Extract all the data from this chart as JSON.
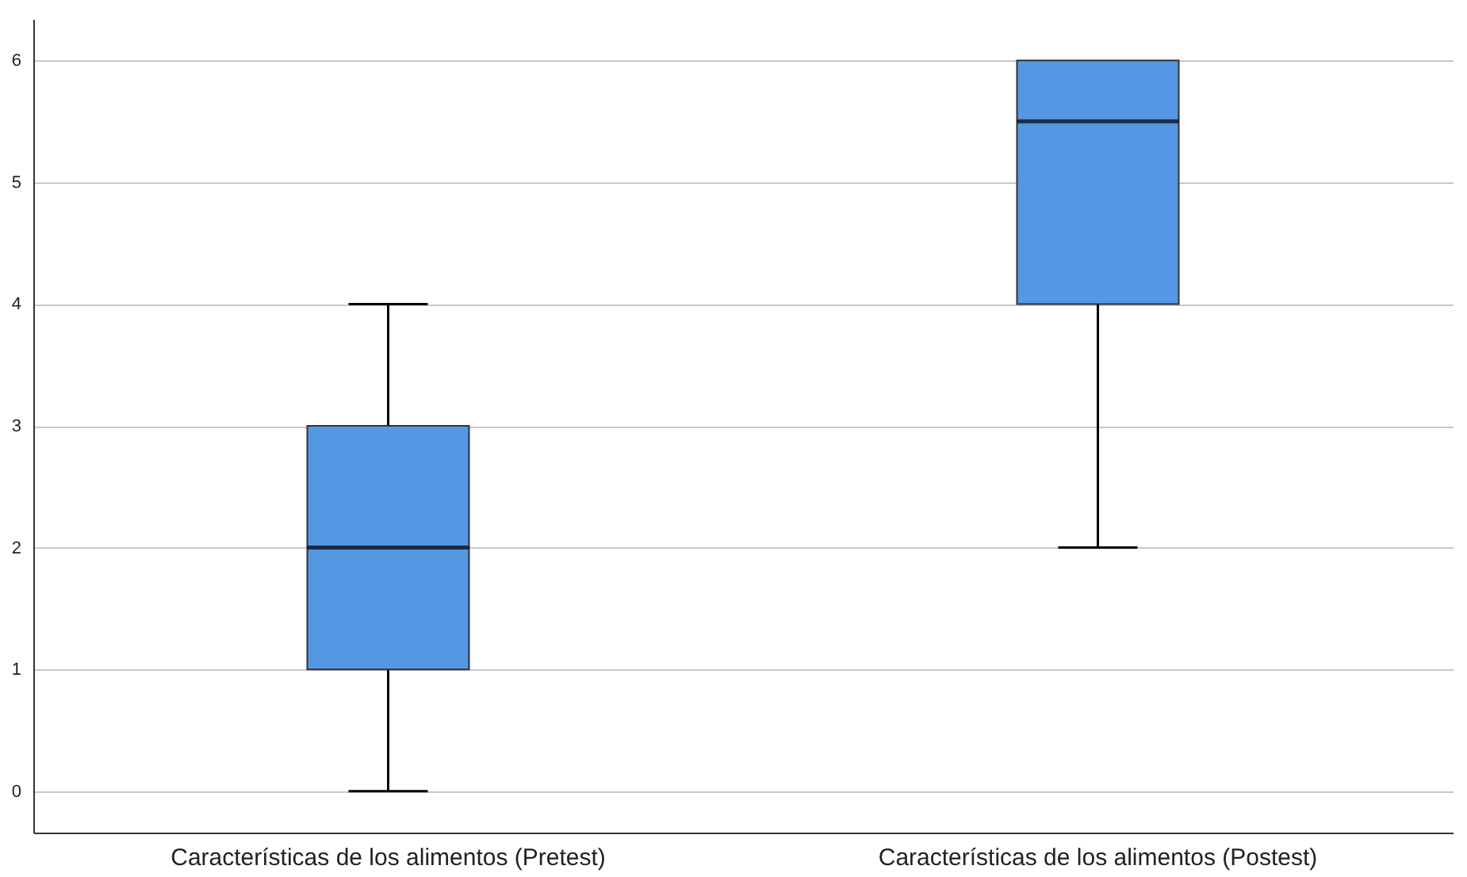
{
  "chart_data": {
    "type": "box",
    "categories": [
      "Características de los alimentos (Pretest)",
      "Características de los alimentos (Postest)"
    ],
    "boxes": [
      {
        "low": 0,
        "q1": 1,
        "median": 2,
        "q3": 3,
        "high": 4
      },
      {
        "low": 2,
        "q1": 4,
        "median": 5.5,
        "q3": 6,
        "high": 6
      }
    ],
    "color": "#5497e3",
    "ylim": [
      -0.34,
      6.34
    ],
    "yticks": [
      0,
      1,
      2,
      3,
      4,
      5,
      6
    ],
    "grid": "y"
  }
}
